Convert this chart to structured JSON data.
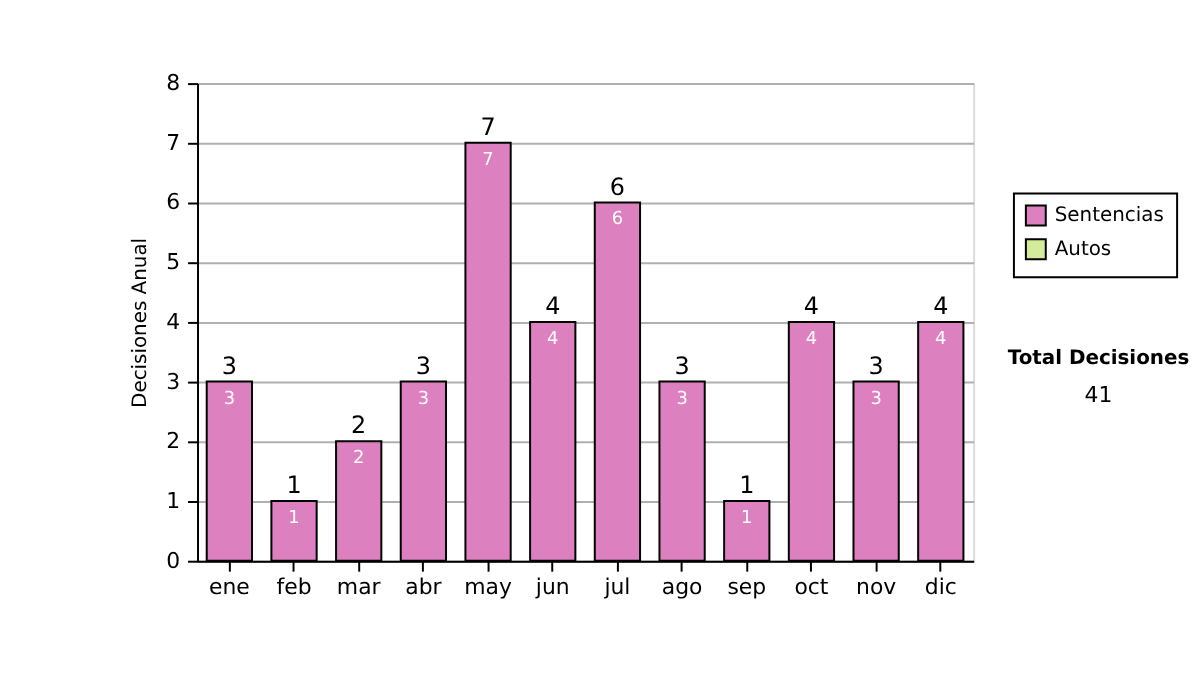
{
  "chart_data": {
    "type": "bar",
    "stacked": true,
    "ylabel": "Decisiones Anual",
    "categories": [
      "ene",
      "feb",
      "mar",
      "abr",
      "may",
      "jun",
      "jul",
      "ago",
      "sep",
      "oct",
      "nov",
      "dic"
    ],
    "series": [
      {
        "name": "Sentencias",
        "color": "#dd80c0",
        "values": [
          3,
          1,
          2,
          3,
          7,
          4,
          6,
          3,
          1,
          4,
          3,
          4
        ],
        "value_labels": [
          "3",
          "1",
          "2",
          "3",
          "7",
          "4",
          "6",
          "3",
          "1",
          "4",
          "3",
          "4"
        ]
      },
      {
        "name": "Autos",
        "color": "#d4eb9c",
        "values": [
          0,
          0,
          0,
          0,
          0,
          0,
          0,
          0,
          0,
          0,
          0,
          0
        ]
      }
    ],
    "totals": [
      "3",
      "1",
      "2",
      "3",
      "7",
      "4",
      "6",
      "3",
      "1",
      "4",
      "3",
      "4"
    ],
    "ylim": [
      0,
      8
    ],
    "yticks": [
      0,
      1,
      2,
      3,
      4,
      5,
      6,
      7,
      8
    ],
    "grid": "y",
    "legend": "right",
    "annotations": [
      "Total Decisiones",
      "41"
    ]
  }
}
